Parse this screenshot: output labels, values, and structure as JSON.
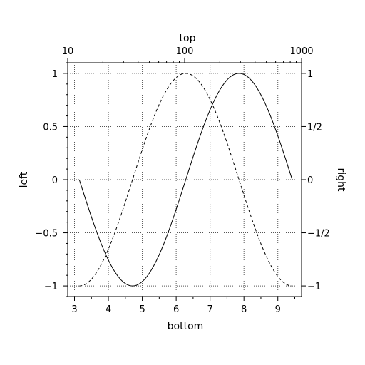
{
  "chart_data": {
    "type": "line",
    "grid": true,
    "axes": {
      "bottom": {
        "label": "bottom",
        "range": [
          2.8,
          9.7
        ],
        "ticks": [
          3,
          4,
          5,
          6,
          7,
          8,
          9
        ],
        "tick_labels": [
          "3",
          "4",
          "5",
          "6",
          "7",
          "8",
          "9"
        ]
      },
      "left": {
        "label": "left",
        "range": [
          -1.1,
          1.1
        ],
        "ticks": [
          -1,
          -0.5,
          0,
          0.5,
          1
        ],
        "tick_labels": [
          "−1",
          "−0.5",
          "0",
          "0.5",
          "1"
        ]
      },
      "top": {
        "label": "top",
        "scale": "log",
        "range": [
          10,
          1000
        ],
        "ticks": [
          10,
          100,
          1000
        ],
        "tick_labels": [
          "10",
          "100",
          "1000"
        ]
      },
      "right": {
        "label": "right",
        "range": [
          -1.1,
          1.1
        ],
        "ticks": [
          -1,
          -0.5,
          0,
          0.5,
          1
        ],
        "tick_labels": [
          "−1",
          "−1/2",
          "0",
          "1/2",
          "1"
        ]
      }
    },
    "series": [
      {
        "style": "solid",
        "function": "sin(x)",
        "x": [
          3.1416,
          3.4,
          3.7,
          4.0,
          4.3,
          4.7124,
          5.0,
          5.3,
          5.6,
          5.9,
          6.2832,
          6.6,
          6.9,
          7.2,
          7.5,
          7.854,
          8.1,
          8.4,
          8.7,
          9.0,
          9.4248
        ],
        "y": [
          0.0,
          -0.2555,
          -0.5298,
          -0.7568,
          -0.9162,
          -1.0,
          -0.9589,
          -0.8323,
          -0.6313,
          -0.3739,
          0.0,
          0.3115,
          0.5784,
          0.7937,
          0.938,
          1.0,
          0.9699,
          0.8546,
          0.6628,
          0.4121,
          0.0
        ]
      },
      {
        "style": "dashed",
        "function": "cos(x)",
        "x": [
          3.1416,
          3.4,
          3.7,
          4.0,
          4.3,
          4.7124,
          5.0,
          5.3,
          5.6,
          5.9,
          6.2832,
          6.6,
          6.9,
          7.2,
          7.5,
          7.854,
          8.1,
          8.4,
          8.7,
          9.0,
          9.4248
        ],
        "y": [
          -1.0,
          -0.9668,
          -0.8481,
          -0.6536,
          -0.4008,
          0.0,
          0.2837,
          0.5544,
          0.7756,
          0.9275,
          1.0,
          0.9502,
          0.8157,
          0.6084,
          0.3466,
          0.0,
          -0.2435,
          -0.5193,
          -0.7487,
          -0.9111,
          -1.0
        ]
      }
    ]
  }
}
